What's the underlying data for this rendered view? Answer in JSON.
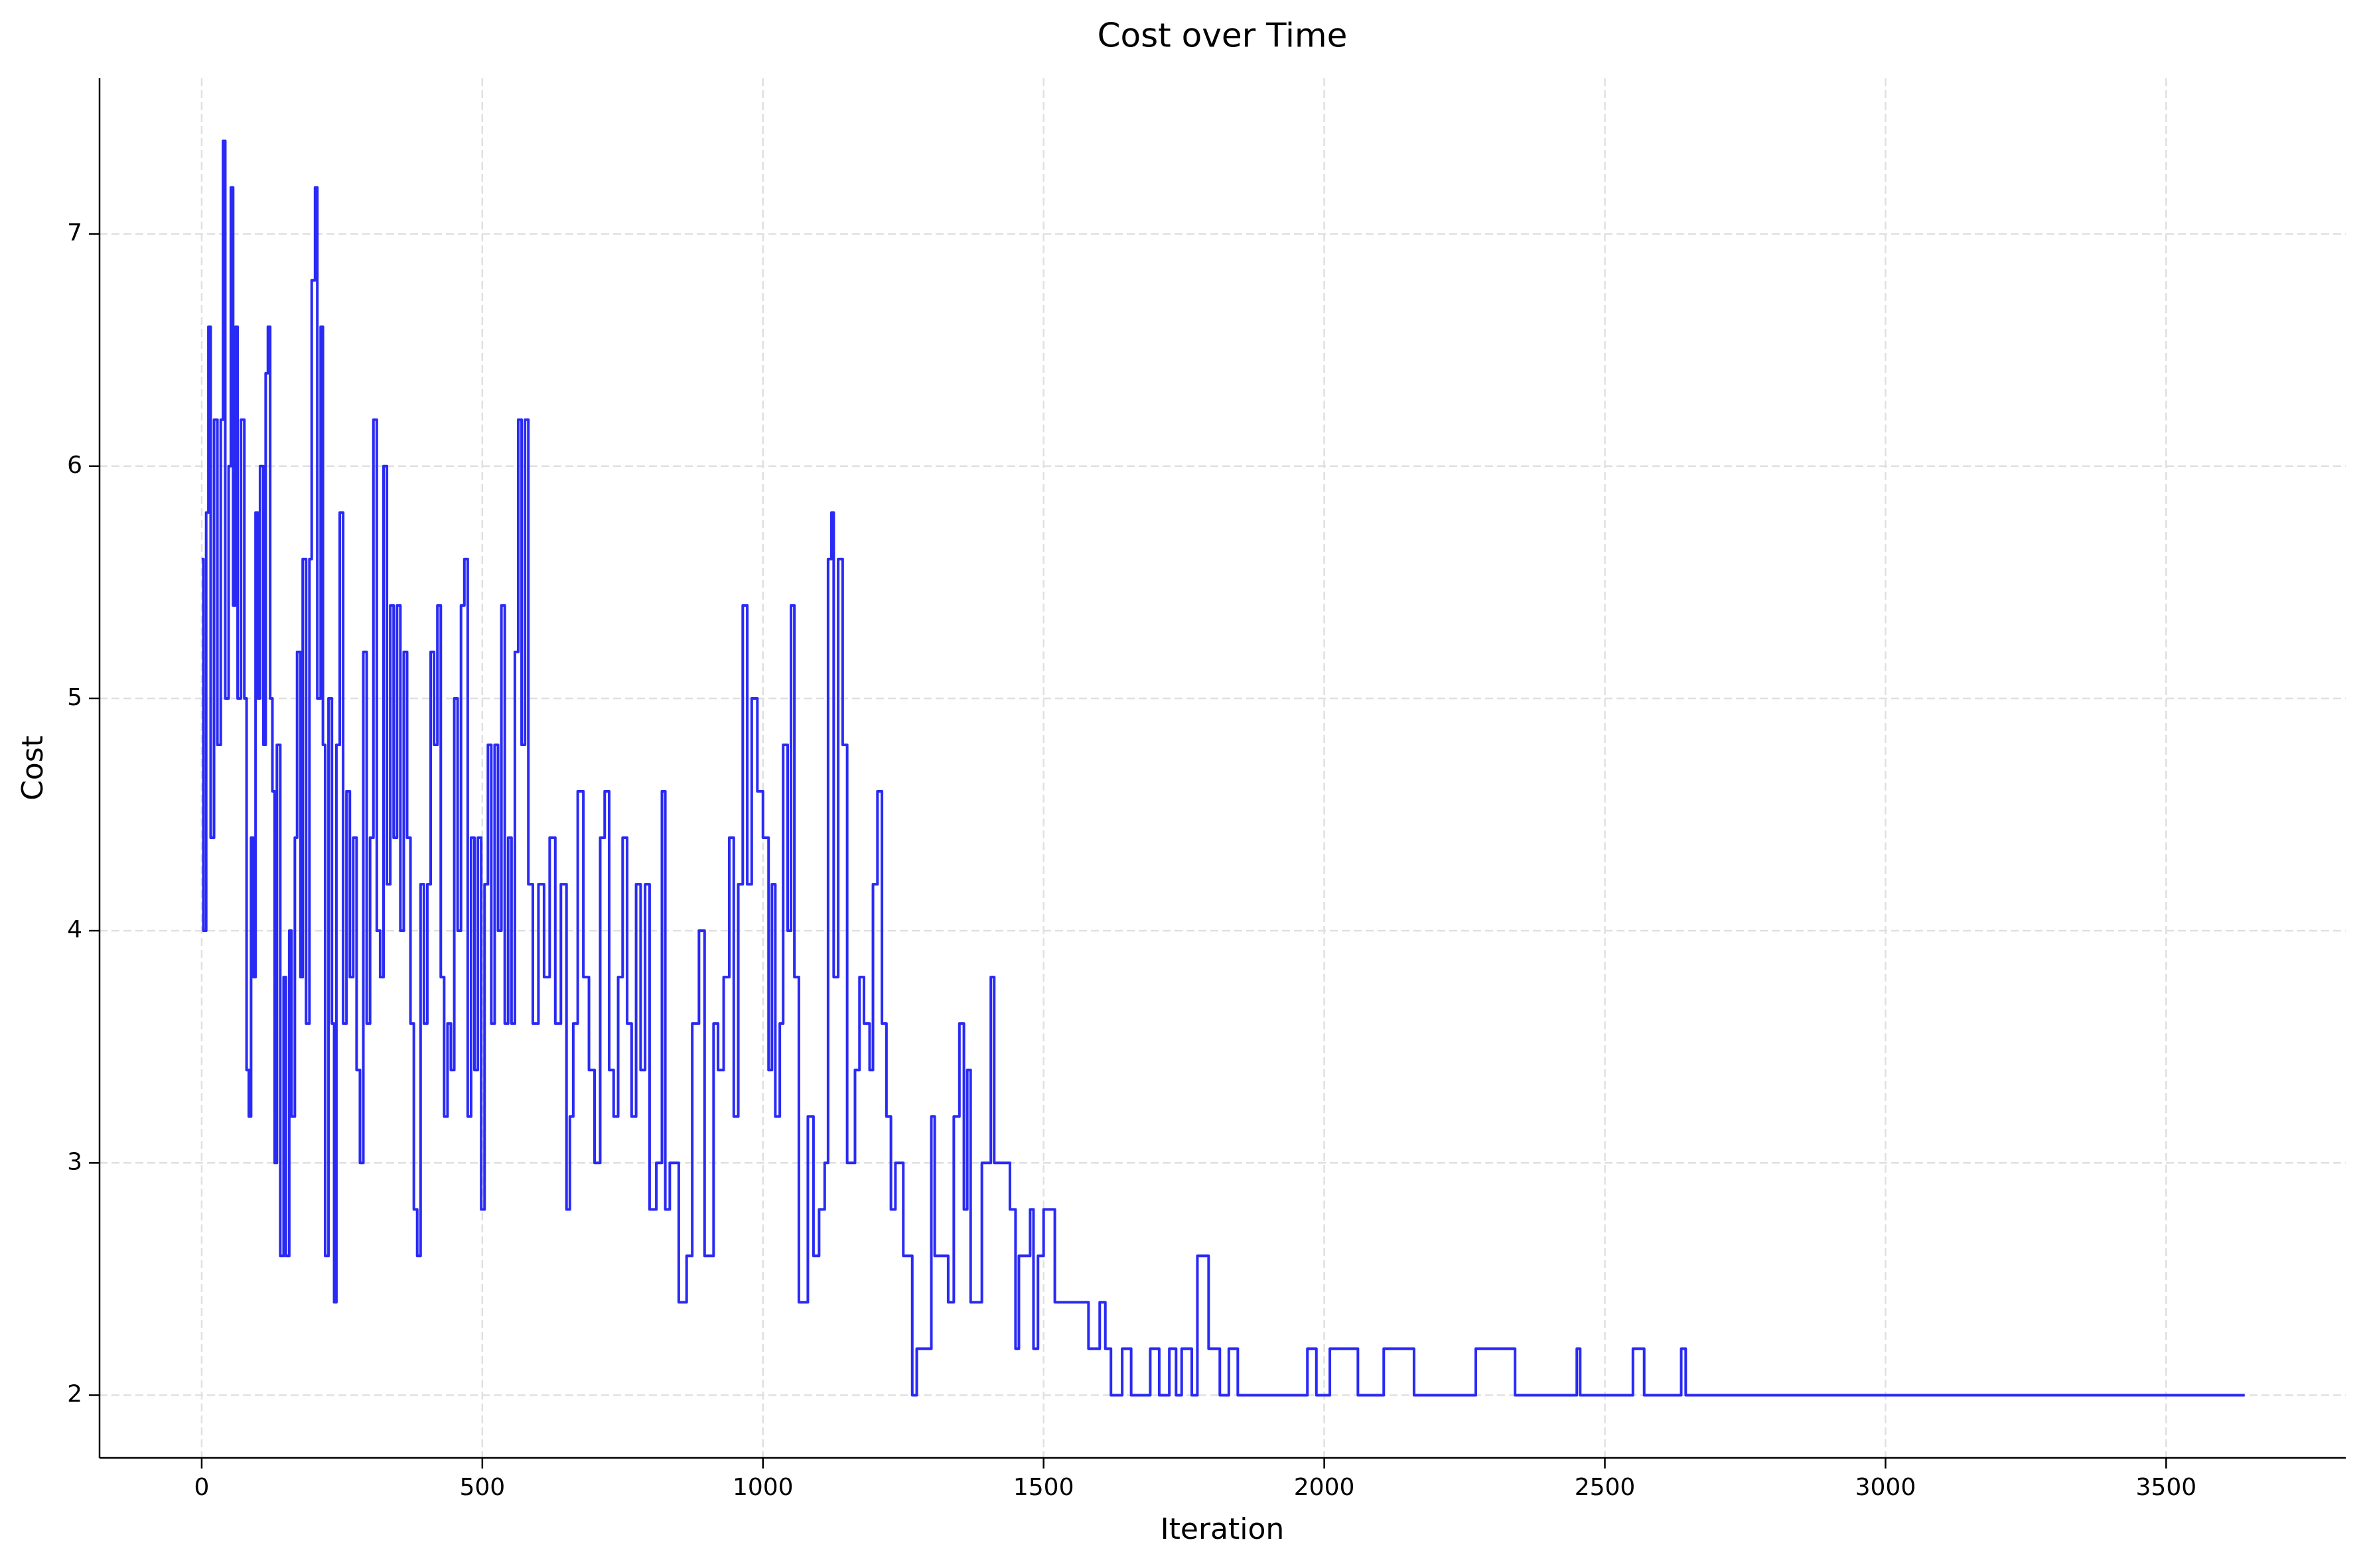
{
  "chart_data": {
    "type": "line",
    "title": "Cost over Time",
    "x_label": "Iteration",
    "y_label": "Cost",
    "drawstyle": "steps-post",
    "grid": true,
    "xlim": [
      -182,
      3820
    ],
    "ylim": [
      1.73,
      7.67
    ],
    "xticks": [
      0,
      500,
      1000,
      1500,
      2000,
      2500,
      3000,
      3500
    ],
    "yticks": [
      2,
      3,
      4,
      5,
      6,
      7
    ],
    "x": [
      0,
      3,
      8,
      12,
      16,
      22,
      28,
      34,
      38,
      42,
      48,
      52,
      56,
      60,
      64,
      70,
      76,
      80,
      84,
      88,
      92,
      96,
      100,
      104,
      110,
      114,
      118,
      122,
      126,
      130,
      134,
      140,
      146,
      150,
      156,
      160,
      166,
      170,
      176,
      180,
      186,
      192,
      196,
      202,
      206,
      212,
      216,
      220,
      226,
      232,
      236,
      240,
      246,
      252,
      258,
      264,
      270,
      276,
      282,
      288,
      294,
      300,
      306,
      312,
      318,
      324,
      330,
      336,
      342,
      348,
      354,
      360,
      366,
      372,
      378,
      384,
      390,
      396,
      402,
      408,
      414,
      420,
      426,
      432,
      438,
      444,
      450,
      456,
      462,
      468,
      474,
      480,
      486,
      492,
      498,
      504,
      510,
      516,
      522,
      528,
      534,
      540,
      546,
      552,
      558,
      564,
      570,
      576,
      582,
      590,
      600,
      610,
      620,
      630,
      640,
      650,
      656,
      662,
      670,
      680,
      690,
      700,
      710,
      718,
      726,
      734,
      742,
      750,
      758,
      766,
      774,
      782,
      790,
      798,
      810,
      820,
      826,
      834,
      850,
      864,
      874,
      886,
      896,
      912,
      920,
      930,
      940,
      948,
      956,
      964,
      972,
      980,
      990,
      1000,
      1010,
      1016,
      1022,
      1030,
      1036,
      1044,
      1050,
      1056,
      1064,
      1080,
      1090,
      1100,
      1110,
      1116,
      1122,
      1126,
      1134,
      1142,
      1150,
      1164,
      1172,
      1180,
      1190,
      1196,
      1204,
      1212,
      1220,
      1228,
      1236,
      1250,
      1266,
      1274,
      1300,
      1306,
      1330,
      1340,
      1350,
      1358,
      1364,
      1370,
      1390,
      1406,
      1412,
      1440,
      1450,
      1456,
      1476,
      1482,
      1490,
      1500,
      1520,
      1580,
      1600,
      1610,
      1620,
      1640,
      1656,
      1690,
      1706,
      1724,
      1736,
      1746,
      1764,
      1774,
      1794,
      1814,
      1830,
      1846,
      1970,
      1986,
      2010,
      2060,
      2106,
      2160,
      2270,
      2340,
      2450,
      2456,
      2550,
      2570,
      2636,
      2644,
      3640
    ],
    "series": [
      {
        "name": "Cost",
        "color": "#2a2af5",
        "values": [
          5.6,
          4.0,
          5.8,
          6.6,
          4.4,
          6.2,
          4.8,
          6.2,
          7.4,
          5.0,
          6.0,
          7.2,
          5.4,
          6.6,
          5.0,
          6.2,
          5.0,
          3.4,
          3.2,
          4.4,
          3.8,
          5.8,
          5.0,
          6.0,
          4.8,
          6.4,
          6.6,
          5.0,
          4.6,
          3.0,
          4.8,
          2.6,
          3.8,
          2.6,
          4.0,
          3.2,
          4.4,
          5.2,
          3.8,
          5.6,
          3.6,
          5.6,
          6.8,
          7.2,
          5.0,
          6.6,
          4.8,
          2.6,
          5.0,
          3.6,
          2.4,
          4.8,
          5.8,
          3.6,
          4.6,
          3.8,
          4.4,
          3.4,
          3.0,
          5.2,
          3.6,
          4.4,
          6.2,
          4.0,
          3.8,
          6.0,
          4.2,
          5.4,
          4.4,
          5.4,
          4.0,
          5.2,
          4.4,
          3.6,
          2.8,
          2.6,
          4.2,
          3.6,
          4.2,
          5.2,
          4.8,
          5.4,
          3.8,
          3.2,
          3.6,
          3.4,
          5.0,
          4.0,
          5.4,
          5.6,
          3.2,
          4.4,
          3.4,
          4.4,
          2.8,
          4.2,
          4.8,
          3.6,
          4.8,
          4.0,
          5.4,
          3.6,
          4.4,
          3.6,
          5.2,
          6.2,
          4.8,
          6.2,
          4.2,
          3.6,
          4.2,
          3.8,
          4.4,
          3.6,
          4.2,
          2.8,
          3.2,
          3.6,
          4.6,
          3.8,
          3.4,
          3.0,
          4.4,
          4.6,
          3.4,
          3.2,
          3.8,
          4.4,
          3.6,
          3.2,
          4.2,
          3.4,
          4.2,
          2.8,
          3.0,
          4.6,
          2.8,
          3.0,
          2.4,
          2.6,
          3.6,
          4.0,
          2.6,
          3.6,
          3.4,
          3.8,
          4.4,
          3.2,
          4.2,
          5.4,
          4.2,
          5.0,
          4.6,
          4.4,
          3.4,
          4.2,
          3.2,
          3.6,
          4.8,
          4.0,
          5.4,
          3.8,
          2.4,
          3.2,
          2.6,
          2.8,
          3.0,
          5.6,
          5.8,
          3.8,
          5.6,
          4.8,
          3.0,
          3.4,
          3.8,
          3.6,
          3.4,
          4.2,
          4.6,
          3.6,
          3.2,
          2.8,
          3.0,
          2.6,
          2.0,
          2.2,
          3.2,
          2.6,
          2.4,
          3.2,
          3.6,
          2.8,
          3.4,
          2.4,
          3.0,
          3.8,
          3.0,
          2.8,
          2.2,
          2.6,
          2.8,
          2.2,
          2.6,
          2.8,
          2.4,
          2.2,
          2.4,
          2.2,
          2.0,
          2.2,
          2.0,
          2.2,
          2.0,
          2.2,
          2.0,
          2.2,
          2.0,
          2.6,
          2.2,
          2.0,
          2.2,
          2.0,
          2.2,
          2.0,
          2.2,
          2.0,
          2.2,
          2.0,
          2.2,
          2.0,
          2.2,
          2.0,
          2.2,
          2.0,
          2.2,
          2.0,
          2.0
        ]
      }
    ]
  }
}
